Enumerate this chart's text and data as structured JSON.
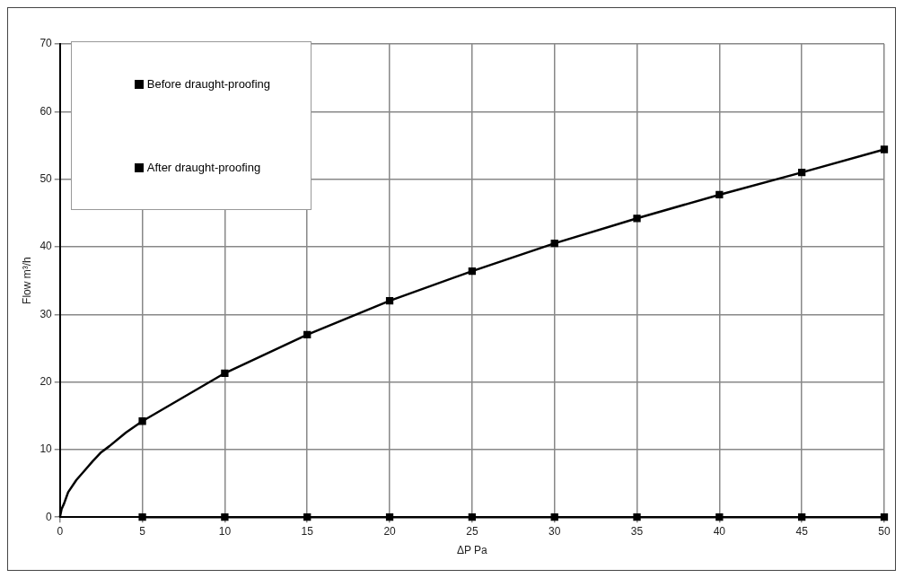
{
  "chart_data": {
    "type": "line",
    "xlabel": "ΔP Pa",
    "ylabel": "Flow m³/h",
    "xlim": [
      0,
      50
    ],
    "xticks": [
      0,
      5,
      10,
      15,
      20,
      25,
      30,
      35,
      40,
      45,
      50
    ],
    "ylim": [
      0,
      70
    ],
    "yticks": [
      0,
      10,
      20,
      30,
      40,
      50,
      60,
      70
    ],
    "grid": true,
    "legend": "top left",
    "series": [
      {
        "color": "#000000",
        "marker": "none",
        "x": [
          0,
          0.1,
          0.25,
          0.5,
          1,
          1.5,
          2,
          2.5,
          3,
          4,
          5
        ],
        "values": [
          0,
          1.2,
          2,
          3.7,
          5.5,
          6.9,
          8.3,
          9.6,
          10.5,
          12.5,
          14.2
        ]
      },
      {
        "name": "Before draught-proofing",
        "color": "#000000",
        "marker": "square",
        "x": [
          5,
          10,
          15,
          20,
          25,
          30,
          35,
          40,
          45,
          50
        ],
        "values": [
          14.2,
          21.3,
          27,
          32,
          36.4,
          40.5,
          44.2,
          47.7,
          51,
          54.4
        ]
      },
      {
        "name": "After draught-proofing",
        "color": "#000000",
        "marker": "square",
        "x": [
          5,
          10,
          15,
          20,
          25,
          30,
          35,
          40,
          45,
          50
        ],
        "values": [
          0,
          0,
          0,
          0,
          0,
          0,
          0,
          0,
          0,
          0
        ]
      }
    ]
  }
}
